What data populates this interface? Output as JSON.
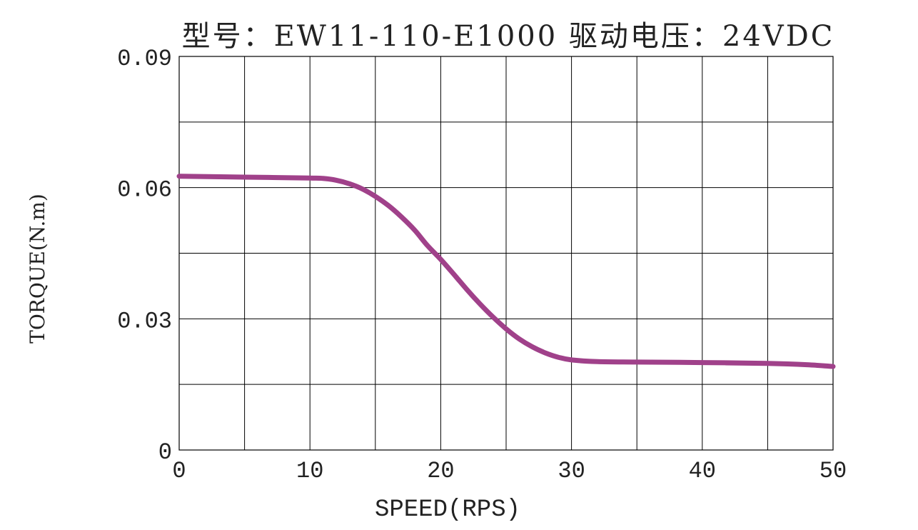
{
  "chart_data": {
    "type": "line",
    "title": "型号：EW11-110-E1000   驱动电压：24VDC",
    "xlabel": "SPEED(RPS)",
    "ylabel": "TORQUE(N.m)",
    "xlim": [
      0,
      50
    ],
    "ylim": [
      0,
      0.09
    ],
    "x_ticks": [
      "0",
      "10",
      "20",
      "30",
      "40",
      "50"
    ],
    "y_ticks": [
      "0",
      "0.03",
      "0.06",
      "0.09"
    ],
    "grid": true,
    "x_grid_step": 5,
    "y_grid_step": 0.015,
    "line_color": "#a0418a",
    "series": [
      {
        "x": [
          0,
          5,
          10,
          11,
          12,
          13,
          14,
          15,
          16,
          17,
          18,
          19,
          20,
          21,
          22,
          23,
          24,
          25,
          26,
          27,
          28,
          29,
          30,
          32,
          35,
          40,
          45,
          48,
          50
        ],
        "y": [
          0.0626,
          0.0624,
          0.0622,
          0.0621,
          0.0617,
          0.0609,
          0.0597,
          0.058,
          0.0559,
          0.0533,
          0.0503,
          0.0467,
          0.0436,
          0.0402,
          0.0367,
          0.0334,
          0.0304,
          0.0277,
          0.0254,
          0.0236,
          0.0222,
          0.0212,
          0.0206,
          0.0202,
          0.0201,
          0.02,
          0.0198,
          0.0195,
          0.0191
        ]
      }
    ]
  }
}
